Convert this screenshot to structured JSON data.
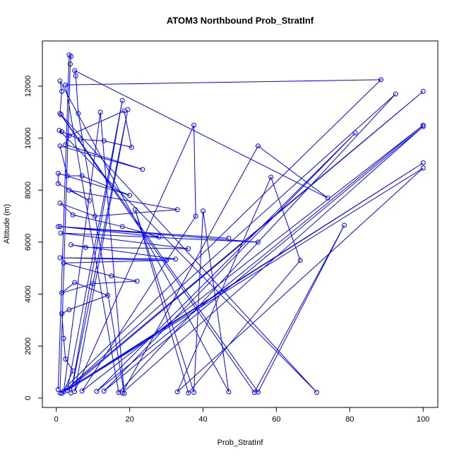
{
  "chart_data": {
    "type": "line",
    "title": "ATOM3 Northbound Prob_StratInf",
    "x_label": "Prob_StratInf",
    "y_label": "Altitude (m)",
    "series": [
      {
        "color": "#0000ff",
        "x": [
          0.5,
          3.5,
          4,
          3.8,
          1,
          88.5,
          2.5,
          17,
          92.5,
          1.5,
          100,
          3,
          18,
          4,
          19.5,
          5,
          37.5,
          38,
          7,
          100,
          11,
          81.5,
          13,
          100,
          18,
          55,
          74,
          5,
          5.3,
          6,
          18.5,
          12,
          2,
          100,
          3,
          100,
          33,
          58.5,
          66.5,
          36,
          21.5,
          37.5,
          40,
          47,
          1,
          1.5,
          1,
          54,
          78.5,
          55,
          1.3,
          71,
          0.8,
          1.5,
          6.5,
          13,
          20.5,
          18.5,
          3.5,
          2.5,
          23.5,
          1,
          3,
          7,
          20,
          0.5,
          0.5,
          9,
          3.5,
          33,
          10.5,
          1,
          4.5,
          18,
          28,
          1,
          47,
          0.5,
          55,
          1.2,
          36,
          8,
          4,
          32.5,
          1,
          30,
          2,
          15,
          22,
          10,
          1.5,
          5,
          14,
          3.5,
          1.5,
          2,
          2.5,
          4.5,
          2
        ],
        "y": [
          330,
          13200,
          13150,
          12850,
          200,
          12250,
          12050,
          220,
          11700,
          180,
          11800,
          300,
          11450,
          200,
          11100,
          250,
          10500,
          7000,
          270,
          10500,
          260,
          10200,
          270,
          10450,
          200,
          9700,
          7700,
          12600,
          12400,
          10950,
          180,
          11000,
          250,
          9050,
          300,
          8850,
          240,
          8500,
          5300,
          200,
          7250,
          220,
          7200,
          240,
          12200,
          11800,
          10950,
          220,
          6650,
          230,
          10900,
          220,
          10300,
          10250,
          9950,
          9900,
          9650,
          11050,
          10100,
          9750,
          8800,
          9700,
          8550,
          8550,
          7800,
          8650,
          8250,
          7600,
          8000,
          7250,
          7000,
          7500,
          7050,
          6600,
          6200,
          6600,
          6150,
          6600,
          6000,
          6350,
          5750,
          5800,
          5900,
          5350,
          5400,
          5300,
          5200,
          4700,
          4500,
          4400,
          4050,
          4450,
          3950,
          3400,
          3250,
          2300,
          1500,
          1050,
          250
        ]
      }
    ],
    "xlim": [
      -3.8,
      104
    ],
    "ylim": [
      -360,
      13740
    ],
    "xticks": [
      0,
      20,
      40,
      60,
      80,
      100
    ],
    "yticks": [
      0,
      2000,
      4000,
      6000,
      8000,
      10000,
      12000
    ]
  }
}
